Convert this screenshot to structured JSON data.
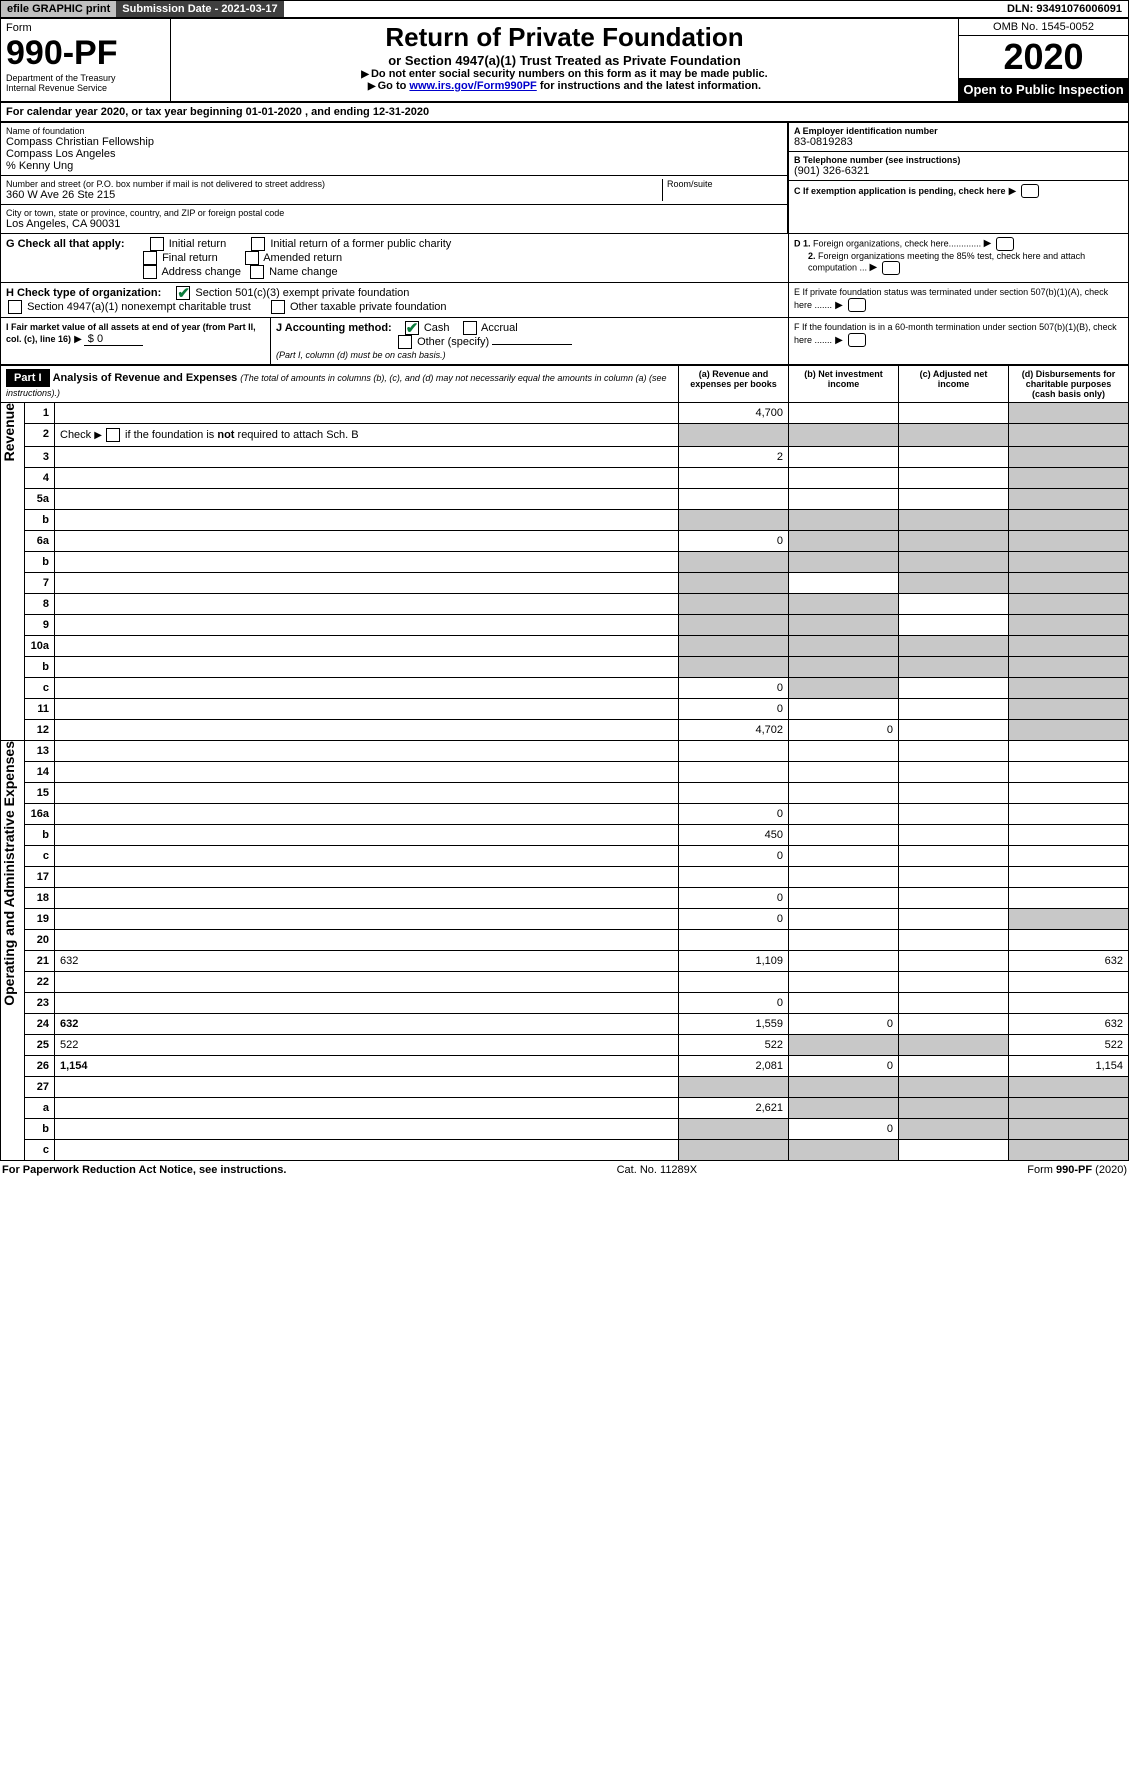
{
  "topbar": {
    "efile": "efile GRAPHIC print",
    "subdate": "Submission Date - 2021-03-17",
    "dln": "DLN: 93491076006091"
  },
  "header": {
    "form_label": "Form",
    "form_no": "990-PF",
    "dept": "Department of the Treasury",
    "irs": "Internal Revenue Service",
    "title": "Return of Private Foundation",
    "subtitle": "or Section 4947(a)(1) Trust Treated as Private Foundation",
    "instr1": "Do not enter social security numbers on this form as it may be made public.",
    "instr2_pre": "Go to ",
    "instr2_link": "www.irs.gov/Form990PF",
    "instr2_post": " for instructions and the latest information.",
    "omb": "OMB No. 1545-0052",
    "year": "2020",
    "open": "Open to Public Inspection"
  },
  "period": {
    "line_pre": "For calendar year 2020, or tax year beginning ",
    "begin": "01-01-2020",
    "mid": " , and ending ",
    "end": "12-31-2020"
  },
  "entity": {
    "name_label": "Name of foundation",
    "name1": "Compass Christian Fellowship",
    "name2": "Compass Los Angeles",
    "care": "% Kenny Ung",
    "addr_label": "Number and street (or P.O. box number if mail is not delivered to street address)",
    "addr": "360 W Ave 26 Ste 215",
    "room_label": "Room/suite",
    "city_label": "City or town, state or province, country, and ZIP or foreign postal code",
    "city": "Los Angeles, CA  90031",
    "A_label": "A Employer identification number",
    "A_val": "83-0819283",
    "B_label": "B Telephone number (see instructions)",
    "B_val": "(901) 326-6321",
    "C_label": "C If exemption application is pending, check here",
    "D1": "D 1. Foreign organizations, check here.............",
    "D2": "2. Foreign organizations meeting the 85% test, check here and attach computation ...",
    "E": "E  If private foundation status was terminated under section 507(b)(1)(A), check here .......",
    "F": "F  If the foundation is in a 60-month termination under section 507(b)(1)(B), check here .......",
    "G_label": "G Check all that apply:",
    "G_opts": [
      "Initial return",
      "Final return",
      "Address change",
      "Initial return of a former public charity",
      "Amended return",
      "Name change"
    ],
    "H_label": "H Check type of organization:",
    "H_opts": [
      "Section 501(c)(3) exempt private foundation",
      "Section 4947(a)(1) nonexempt charitable trust",
      "Other taxable private foundation"
    ],
    "I_label": "I Fair market value of all assets at end of year (from Part II, col. (c), line 16)",
    "I_val": "$  0",
    "J_label": "J Accounting method:",
    "J_opts": [
      "Cash",
      "Accrual",
      "Other (specify)"
    ],
    "J_note": "(Part I, column (d) must be on cash basis.)"
  },
  "part1": {
    "hdr": "Part I",
    "title": "Analysis of Revenue and Expenses",
    "title_note": "(The total of amounts in columns (b), (c), and (d) may not necessarily equal the amounts in column (a) (see instructions).)",
    "cols": {
      "a": "(a) Revenue and expenses per books",
      "b": "(b) Net investment income",
      "c": "(c) Adjusted net income",
      "d": "(d) Disbursements for charitable purposes (cash basis only)"
    },
    "side_rev": "Revenue",
    "side_exp": "Operating and Administrative Expenses",
    "rows": [
      {
        "n": "1",
        "d": "",
        "a": "4,700",
        "b": "",
        "c": "",
        "shade": [
          "d"
        ]
      },
      {
        "n": "2",
        "d": "",
        "a": "",
        "b": "",
        "c": "",
        "shade": [
          "a",
          "b",
          "c",
          "d"
        ],
        "raw": true,
        "html": "Check <span class='arrow'></span><span class='checkbox'></span> if the foundation is <b>not</b> required to attach Sch. B"
      },
      {
        "n": "3",
        "d": "",
        "a": "2",
        "b": "",
        "c": "",
        "shade": [
          "d"
        ]
      },
      {
        "n": "4",
        "d": "",
        "a": "",
        "b": "",
        "c": "",
        "shade": [
          "d"
        ]
      },
      {
        "n": "5a",
        "d": "",
        "a": "",
        "b": "",
        "c": "",
        "shade": [
          "d"
        ]
      },
      {
        "n": "b",
        "d": "",
        "a": "",
        "b": "",
        "c": "",
        "shade": [
          "a",
          "b",
          "c",
          "d"
        ]
      },
      {
        "n": "6a",
        "d": "",
        "a": "0",
        "b": "",
        "c": "",
        "shade": [
          "b",
          "c",
          "d"
        ]
      },
      {
        "n": "b",
        "d": "",
        "a": "",
        "b": "",
        "c": "",
        "shade": [
          "a",
          "b",
          "c",
          "d"
        ]
      },
      {
        "n": "7",
        "d": "",
        "a": "",
        "b": "",
        "c": "",
        "shade": [
          "a",
          "c",
          "d"
        ]
      },
      {
        "n": "8",
        "d": "",
        "a": "",
        "b": "",
        "c": "",
        "shade": [
          "a",
          "b",
          "d"
        ]
      },
      {
        "n": "9",
        "d": "",
        "a": "",
        "b": "",
        "c": "",
        "shade": [
          "a",
          "b",
          "d"
        ]
      },
      {
        "n": "10a",
        "d": "",
        "a": "",
        "b": "",
        "c": "",
        "shade": [
          "a",
          "b",
          "c",
          "d"
        ]
      },
      {
        "n": "b",
        "d": "",
        "a": "",
        "b": "",
        "c": "",
        "shade": [
          "a",
          "b",
          "c",
          "d"
        ]
      },
      {
        "n": "c",
        "d": "",
        "a": "0",
        "b": "",
        "c": "",
        "shade": [
          "b",
          "d"
        ]
      },
      {
        "n": "11",
        "d": "",
        "a": "0",
        "b": "",
        "c": "",
        "shade": [
          "d"
        ]
      },
      {
        "n": "12",
        "d": "",
        "a": "4,702",
        "b": "0",
        "c": "",
        "shade": [
          "d"
        ],
        "bold": true
      },
      {
        "n": "13",
        "d": "",
        "a": "",
        "b": "",
        "c": ""
      },
      {
        "n": "14",
        "d": "",
        "a": "",
        "b": "",
        "c": ""
      },
      {
        "n": "15",
        "d": "",
        "a": "",
        "b": "",
        "c": ""
      },
      {
        "n": "16a",
        "d": "",
        "a": "0",
        "b": "",
        "c": ""
      },
      {
        "n": "b",
        "d": "",
        "a": "450",
        "b": "",
        "c": ""
      },
      {
        "n": "c",
        "d": "",
        "a": "0",
        "b": "",
        "c": ""
      },
      {
        "n": "17",
        "d": "",
        "a": "",
        "b": "",
        "c": ""
      },
      {
        "n": "18",
        "d": "",
        "a": "0",
        "b": "",
        "c": ""
      },
      {
        "n": "19",
        "d": "",
        "a": "0",
        "b": "",
        "c": "",
        "shade": [
          "d"
        ]
      },
      {
        "n": "20",
        "d": "",
        "a": "",
        "b": "",
        "c": ""
      },
      {
        "n": "21",
        "d": "632",
        "a": "1,109",
        "b": "",
        "c": ""
      },
      {
        "n": "22",
        "d": "",
        "a": "",
        "b": "",
        "c": ""
      },
      {
        "n": "23",
        "d": "",
        "a": "0",
        "b": "",
        "c": ""
      },
      {
        "n": "24",
        "d": "632",
        "a": "1,559",
        "b": "0",
        "c": "",
        "bold": true
      },
      {
        "n": "25",
        "d": "522",
        "a": "522",
        "b": "",
        "c": "",
        "shade": [
          "b",
          "c"
        ]
      },
      {
        "n": "26",
        "d": "1,154",
        "a": "2,081",
        "b": "0",
        "c": "",
        "bold": true
      },
      {
        "n": "27",
        "d": "",
        "a": "",
        "b": "",
        "c": "",
        "shade": [
          "a",
          "b",
          "c",
          "d"
        ]
      },
      {
        "n": "a",
        "d": "",
        "a": "2,621",
        "b": "",
        "c": "",
        "shade": [
          "b",
          "c",
          "d"
        ],
        "bold": true
      },
      {
        "n": "b",
        "d": "",
        "a": "",
        "b": "0",
        "c": "",
        "shade": [
          "a",
          "c",
          "d"
        ],
        "bold": true
      },
      {
        "n": "c",
        "d": "",
        "a": "",
        "b": "",
        "c": "",
        "shade": [
          "a",
          "b",
          "d"
        ],
        "bold": true
      }
    ]
  },
  "footer": {
    "left": "For Paperwork Reduction Act Notice, see instructions.",
    "mid": "Cat. No. 11289X",
    "right": "Form 990-PF (2020)"
  },
  "colors": {
    "shade": "#c8c8c8",
    "link": "#0000cc",
    "check": "#0b7a3b"
  }
}
